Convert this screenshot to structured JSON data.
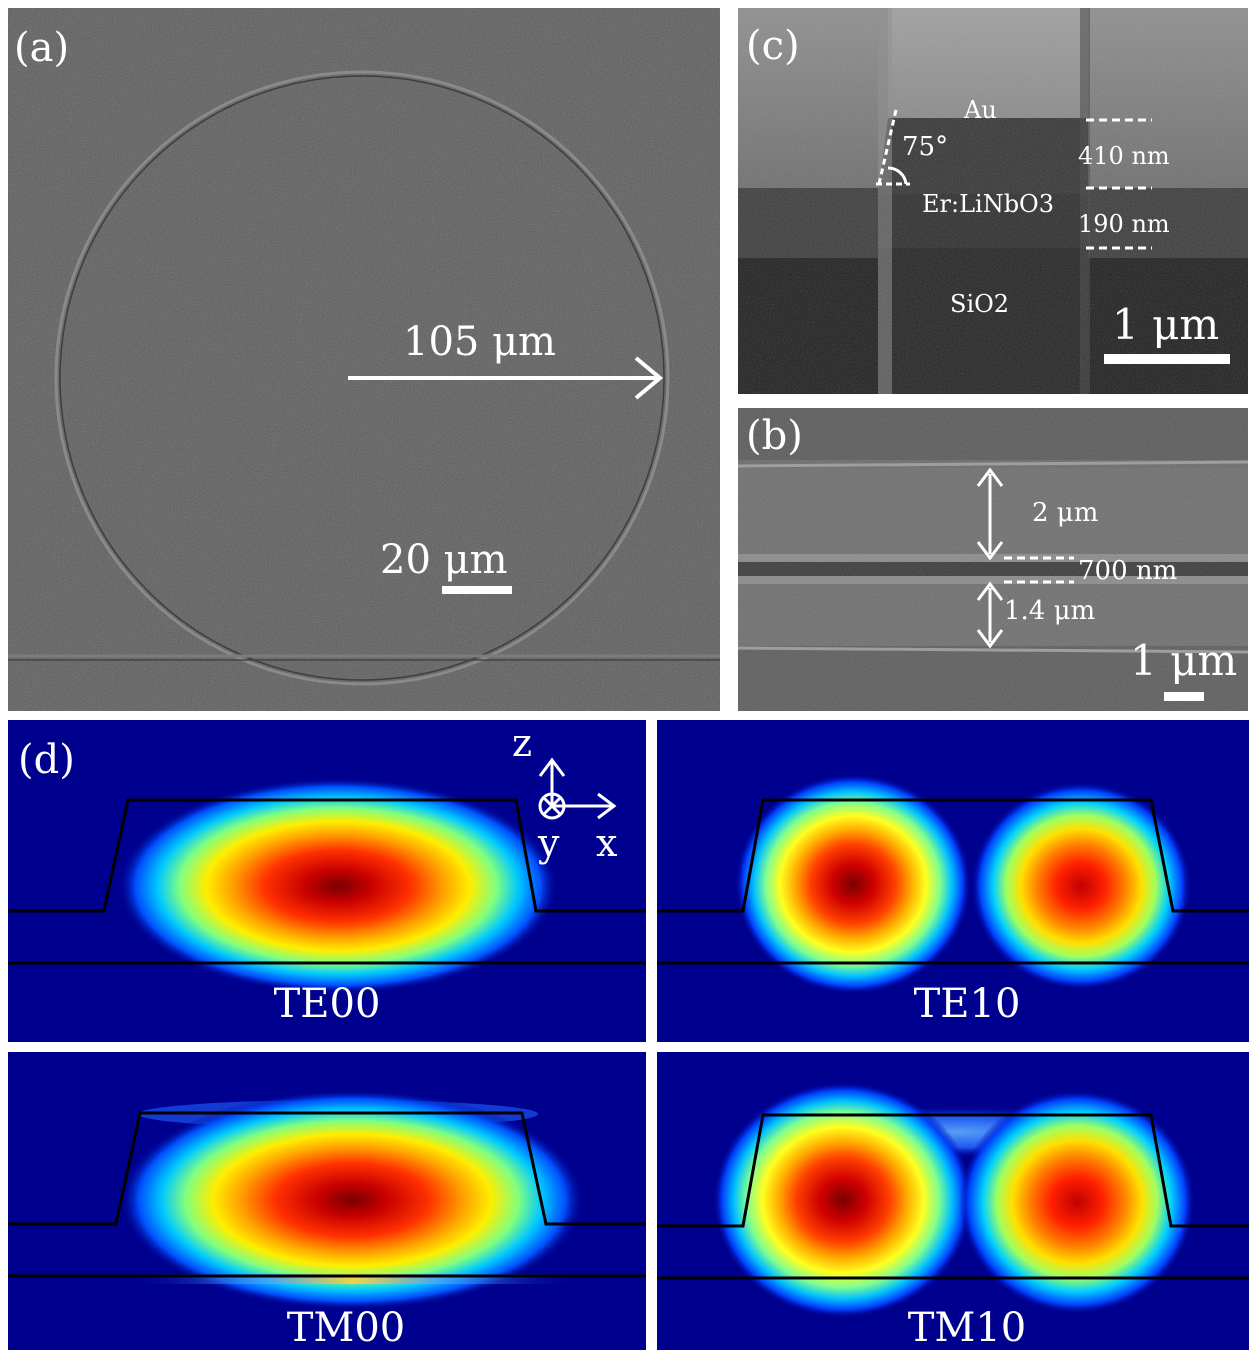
{
  "panel_a": {
    "label": "(a)",
    "radius_label": "105 μm",
    "scale_label": "20 μm"
  },
  "panel_c": {
    "label": "(c)",
    "layer_au": "Au",
    "angle_label": "75°",
    "layer_ln": "Er:LiNbO3",
    "thickness_top": "410 nm",
    "thickness_bottom": "190 nm",
    "layer_sio2": "SiO2",
    "scale_label": "1 μm"
  },
  "panel_b": {
    "label": "(b)",
    "width_top": "2 μm",
    "gap": "700 nm",
    "width_bottom": "1.4 μm",
    "scale_label": "1 μm"
  },
  "panel_d": {
    "label": "(d)",
    "axis_z": "z",
    "axis_y": "y",
    "axis_x": "x",
    "modes": [
      "TE00",
      "TE10",
      "TM00",
      "TM10"
    ]
  },
  "colors": {
    "field_background": "#00008f",
    "field_peak": "#7f0000",
    "annotation": "#ffffff",
    "sem_gray": "#5a5a5a"
  }
}
